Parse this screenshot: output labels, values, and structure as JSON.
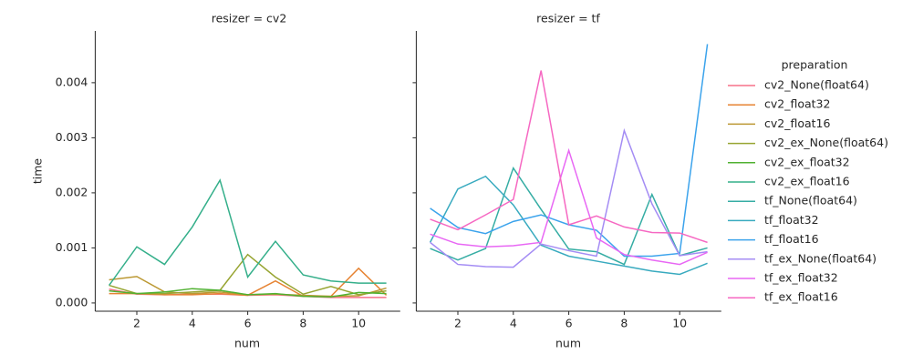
{
  "chart_data": [
    {
      "type": "line",
      "title": "resizer = cv2",
      "xlabel": "num",
      "ylabel": "time",
      "legend_title": "preparation",
      "x": [
        1,
        2,
        3,
        4,
        5,
        6,
        7,
        8,
        9,
        10,
        11
      ],
      "xlim": [
        0.5,
        11.5
      ],
      "xticks": [
        2,
        4,
        6,
        8,
        10
      ],
      "ylim": [
        -0.00015,
        0.00494
      ],
      "yticks": [
        {
          "value": 0,
          "label": "0.000"
        },
        {
          "value": 0.001,
          "label": "0.001"
        },
        {
          "value": 0.002,
          "label": "0.002"
        },
        {
          "value": 0.003,
          "label": "0.003"
        },
        {
          "value": 0.004,
          "label": "0.004"
        }
      ],
      "series": [
        {
          "name": "cv2_None(float64)",
          "color": "#f77189",
          "values": [
            0.00025,
            0.00016,
            0.00015,
            0.00016,
            0.00016,
            0.00014,
            0.00015,
            0.00012,
            0.0001,
            0.0001,
            0.0001
          ]
        },
        {
          "name": "cv2_float32",
          "color": "#e68332",
          "values": [
            0.00017,
            0.00017,
            0.00015,
            0.00015,
            0.00017,
            0.00014,
            0.0004,
            0.00012,
            0.00012,
            0.00063,
            0.00014
          ]
        },
        {
          "name": "cv2_float16",
          "color": "#bb9832",
          "values": [
            0.00042,
            0.00048,
            0.0002,
            0.00017,
            0.0002,
            0.00015,
            0.00016,
            0.00014,
            0.00012,
            0.00013,
            0.00027
          ]
        },
        {
          "name": "cv2_ex_None(float64)",
          "color": "#97a431",
          "values": [
            0.00032,
            0.00017,
            0.00017,
            0.0002,
            0.00023,
            0.00088,
            0.00047,
            0.00016,
            0.0003,
            0.00015,
            0.00022
          ]
        },
        {
          "name": "cv2_ex_float32",
          "color": "#50b131",
          "values": [
            0.00022,
            0.00017,
            0.0002,
            0.00026,
            0.00023,
            0.00015,
            0.00017,
            0.00012,
            0.00011,
            0.00019,
            0.00017
          ]
        },
        {
          "name": "cv2_ex_float16",
          "color": "#34af8a",
          "values": [
            0.00032,
            0.00102,
            0.0007,
            0.00138,
            0.00223,
            0.00047,
            0.00112,
            0.00051,
            0.0004,
            0.00036,
            0.00036
          ]
        }
      ]
    },
    {
      "type": "line",
      "title": "resizer = tf",
      "xlabel": "num",
      "x": [
        1,
        2,
        3,
        4,
        5,
        6,
        7,
        8,
        9,
        10,
        11
      ],
      "xlim": [
        0.5,
        11.5
      ],
      "xticks": [
        2,
        4,
        6,
        8,
        10
      ],
      "series": [
        {
          "name": "tf_None(float64)",
          "color": "#36ada4",
          "values": [
            0.00099,
            0.00078,
            0.00099,
            0.00245,
            0.0017,
            0.00098,
            0.00093,
            0.0007,
            0.00197,
            0.00086,
            0.001
          ]
        },
        {
          "name": "tf_float32",
          "color": "#38aabf",
          "values": [
            0.0011,
            0.00207,
            0.0023,
            0.00178,
            0.00105,
            0.00085,
            0.00076,
            0.00067,
            0.00058,
            0.00052,
            0.00072
          ]
        },
        {
          "name": "tf_float16",
          "color": "#3ba3ec",
          "values": [
            0.00172,
            0.00137,
            0.00126,
            0.00148,
            0.0016,
            0.00142,
            0.00132,
            0.00085,
            0.00085,
            0.0009,
            0.0047
          ]
        },
        {
          "name": "tf_ex_None(float64)",
          "color": "#a48cf4",
          "values": [
            0.0011,
            0.0007,
            0.00066,
            0.00065,
            0.00107,
            0.00095,
            0.00085,
            0.00313,
            0.0018,
            0.00086,
            0.00093
          ]
        },
        {
          "name": "tf_ex_float32",
          "color": "#e867f4",
          "values": [
            0.00125,
            0.00107,
            0.00102,
            0.00104,
            0.0011,
            0.00277,
            0.00118,
            0.00088,
            0.00078,
            0.0007,
            0.00092
          ]
        },
        {
          "name": "tf_ex_float16",
          "color": "#f668c2",
          "values": [
            0.00152,
            0.00133,
            0.0016,
            0.00188,
            0.00422,
            0.00142,
            0.00158,
            0.00138,
            0.00128,
            0.00127,
            0.0011
          ]
        }
      ]
    }
  ]
}
